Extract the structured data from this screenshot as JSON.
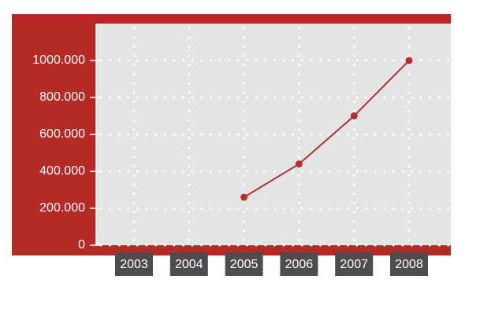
{
  "chart_data": {
    "type": "line",
    "categories": [
      "2003",
      "2004",
      "2005",
      "2006",
      "2007",
      "2008"
    ],
    "values": [
      null,
      null,
      260,
      440,
      700,
      1000
    ],
    "color": "#b8302c",
    "ylim": [
      0,
      1200
    ],
    "yticks": [
      0,
      {
        "value": 200,
        "label": "200.000"
      },
      {
        "value": 400,
        "label": "400.000"
      },
      {
        "value": 600,
        "label": "600.000"
      },
      {
        "value": 800,
        "label": "800.000"
      },
      {
        "value": 1000,
        "label": "1000.000"
      }
    ],
    "grid": true
  }
}
